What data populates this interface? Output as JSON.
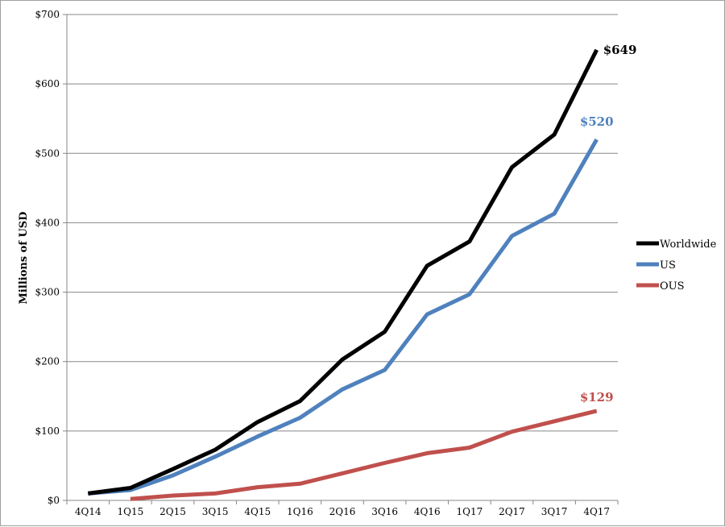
{
  "chart_data": {
    "type": "line",
    "ylabel": "Millions of USD",
    "ylim": [
      0,
      700
    ],
    "y_ticks": [
      "$0",
      "$100",
      "$200",
      "$300",
      "$400",
      "$500",
      "$600",
      "$700"
    ],
    "y_tick_values": [
      0,
      100,
      200,
      300,
      400,
      500,
      600,
      700
    ],
    "categories": [
      "4Q14",
      "1Q15",
      "2Q15",
      "3Q15",
      "4Q15",
      "1Q16",
      "2Q16",
      "3Q16",
      "4Q16",
      "1Q17",
      "2Q17",
      "3Q17",
      "4Q17"
    ],
    "grid": "horizontal",
    "legend_position": "right",
    "series": [
      {
        "name": "Worldwide",
        "color": "#000000",
        "values": [
          10,
          18,
          45,
          73,
          113,
          143,
          203,
          243,
          338,
          373,
          480,
          527,
          649
        ],
        "end_label": "$649"
      },
      {
        "name": "US",
        "color": "#4f81bd",
        "values": [
          10,
          15,
          36,
          63,
          92,
          119,
          160,
          188,
          268,
          297,
          381,
          413,
          520
        ],
        "end_label": "$520"
      },
      {
        "name": "OUS",
        "color": "#c0504d",
        "values": [
          null,
          2,
          7,
          10,
          19,
          24,
          39,
          54,
          68,
          76,
          99,
          114,
          129
        ],
        "end_label": "$129"
      }
    ]
  }
}
